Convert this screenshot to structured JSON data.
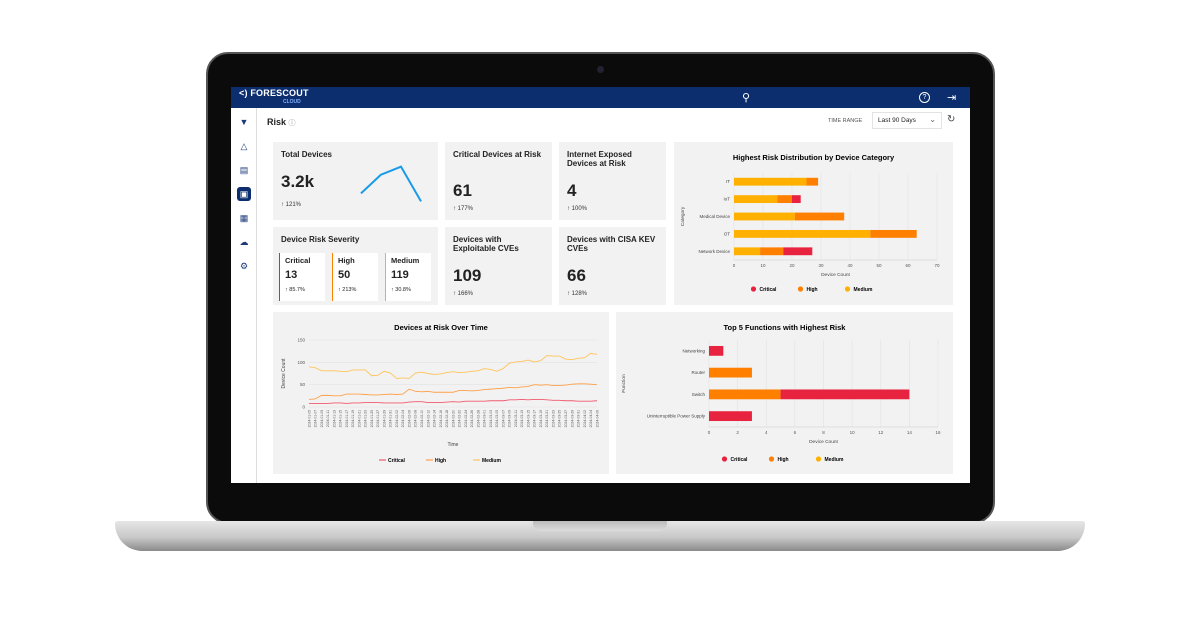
{
  "app": {
    "logo": "FORESCOUT",
    "logo_sub": "CLOUD"
  },
  "header": {
    "icons": [
      "search-icon",
      "help-icon",
      "logout-icon"
    ]
  },
  "sidebar": {
    "items": [
      {
        "icon": "shield-icon"
      },
      {
        "icon": "alert-triangle-icon"
      },
      {
        "icon": "briefcase-icon"
      },
      {
        "icon": "dashboard-icon",
        "active": true
      },
      {
        "icon": "report-icon"
      },
      {
        "icon": "cloud-device-icon"
      },
      {
        "icon": "settings-icon"
      }
    ]
  },
  "page": {
    "title": "Risk",
    "time_range_label": "TIME RANGE",
    "time_range_value": "Last 90 Days"
  },
  "kpis": {
    "total": {
      "title": "Total Devices",
      "value": "3.2k",
      "change": "121%",
      "sparkline": [
        2.2,
        2.9,
        3.2,
        1.9
      ]
    },
    "critical": {
      "title": "Critical Devices at Risk",
      "value": "61",
      "change": "177%"
    },
    "internet": {
      "title": "Internet Exposed Devices at Risk",
      "value": "4",
      "change": "100%"
    },
    "exploitable": {
      "title": "Devices with Exploitable CVEs",
      "value": "109",
      "change": "166%"
    },
    "kev": {
      "title": "Devices with CISA KEV CVEs",
      "value": "66",
      "change": "128%"
    },
    "severity": {
      "title": "Device Risk Severity",
      "items": [
        {
          "label": "Critical",
          "value": "13",
          "change": "85.7%",
          "color": "#e8233f"
        },
        {
          "label": "High",
          "value": "50",
          "change": "213%",
          "color": "#ff7f00"
        },
        {
          "label": "Medium",
          "value": "119",
          "change": "30.8%",
          "color": "#ffb000"
        }
      ]
    }
  },
  "colors": {
    "Critical": "#e8233f",
    "High": "#ff7f00",
    "Medium": "#ffb000",
    "Critical_line": "#f05a6e",
    "High_line": "#ffa04a",
    "Medium_line": "#ffc45a"
  },
  "chart_data": [
    {
      "type": "bar",
      "orientation": "horizontal",
      "stacked": true,
      "title": "Highest Risk Distribution by Device Category",
      "xlabel": "Device Count",
      "ylabel": "Category",
      "xlim": [
        0,
        70
      ],
      "xticks": [
        "0",
        "10",
        "20",
        "30",
        "40",
        "50",
        "60",
        "70"
      ],
      "grid": true,
      "legend": "bottom",
      "categories": [
        "IT",
        "IoT",
        "Medical Device",
        "OT",
        "Network Device"
      ],
      "series": [
        {
          "name": "Medium",
          "values": [
            25,
            15,
            21,
            47,
            9
          ]
        },
        {
          "name": "High",
          "values": [
            4,
            5,
            17,
            16,
            8
          ]
        },
        {
          "name": "Critical",
          "values": [
            0,
            3,
            0,
            0,
            10
          ]
        }
      ],
      "legend_entries": [
        "Critical",
        "High",
        "Medium"
      ]
    },
    {
      "type": "line",
      "title": "Devices at Risk Over Time",
      "xlabel": "Time",
      "ylabel": "Device Count",
      "ylim": [
        0,
        150
      ],
      "yticks": [
        "0",
        "50",
        "100",
        "150"
      ],
      "grid": true,
      "legend": "bottom",
      "x": [
        "2024-01-05",
        "2024-01-07",
        "2024-01-09",
        "2024-01-11",
        "2024-01-13",
        "2024-01-15",
        "2024-01-17",
        "2024-01-19",
        "2024-01-21",
        "2024-01-23",
        "2024-01-25",
        "2024-01-27",
        "2024-01-29",
        "2024-01-31",
        "2024-02-02",
        "2024-02-04",
        "2024-02-06",
        "2024-02-08",
        "2024-02-10",
        "2024-02-12",
        "2024-02-14",
        "2024-02-16",
        "2024-02-18",
        "2024-02-20",
        "2024-02-22",
        "2024-02-24",
        "2024-02-26",
        "2024-02-28",
        "2024-03-01",
        "2024-03-03",
        "2024-03-05",
        "2024-03-07",
        "2024-03-09",
        "2024-03-11",
        "2024-03-13",
        "2024-03-15",
        "2024-03-17",
        "2024-03-19",
        "2024-03-21",
        "2024-03-23",
        "2024-03-25",
        "2024-03-27",
        "2024-03-29",
        "2024-03-31",
        "2024-04-02",
        "2024-04-04",
        "2024-04-06"
      ],
      "series": [
        {
          "name": "Critical",
          "values": [
            8,
            8,
            8,
            8,
            9,
            9,
            8,
            9,
            9,
            10,
            10,
            10,
            9,
            9,
            9,
            9,
            11,
            12,
            12,
            10,
            10,
            10,
            11,
            12,
            11,
            13,
            13,
            13,
            13,
            14,
            14,
            14,
            16,
            16,
            17,
            16,
            17,
            17,
            16,
            15,
            15,
            14,
            14,
            13,
            13,
            13,
            14
          ]
        },
        {
          "name": "High",
          "values": [
            17,
            18,
            26,
            26,
            25,
            25,
            29,
            29,
            29,
            28,
            27,
            27,
            28,
            29,
            28,
            29,
            40,
            35,
            34,
            35,
            33,
            33,
            33,
            33,
            37,
            37,
            36,
            37,
            39,
            40,
            41,
            42,
            44,
            43,
            45,
            46,
            50,
            49,
            50,
            48,
            48,
            49,
            51,
            52,
            52,
            51,
            50
          ]
        },
        {
          "name": "Medium",
          "values": [
            90,
            88,
            81,
            81,
            81,
            80,
            79,
            83,
            83,
            83,
            70,
            71,
            80,
            76,
            64,
            65,
            64,
            76,
            78,
            75,
            73,
            74,
            77,
            79,
            77,
            78,
            80,
            81,
            86,
            84,
            80,
            86,
            98,
            101,
            102,
            105,
            101,
            104,
            115,
            114,
            114,
            107,
            106,
            109,
            110,
            120,
            118
          ]
        }
      ]
    },
    {
      "type": "bar",
      "orientation": "horizontal",
      "stacked": true,
      "title": "Top 5 Functions with Highest Risk",
      "xlabel": "Device Count",
      "ylabel": "Function",
      "xlim": [
        0,
        16
      ],
      "xticks": [
        "0",
        "2",
        "4",
        "6",
        "8",
        "10",
        "12",
        "14",
        "16"
      ],
      "grid": true,
      "legend": "bottom",
      "categories": [
        "Networking",
        "Router",
        "Switch",
        "Uninterruptible Power Supply"
      ],
      "series": [
        {
          "name": "Medium",
          "values": [
            0,
            0,
            0,
            0
          ]
        },
        {
          "name": "High",
          "values": [
            0,
            3,
            5,
            0
          ]
        },
        {
          "name": "Critical",
          "values": [
            1,
            0,
            9,
            3
          ]
        }
      ],
      "legend_entries": [
        "Critical",
        "High",
        "Medium"
      ]
    }
  ]
}
